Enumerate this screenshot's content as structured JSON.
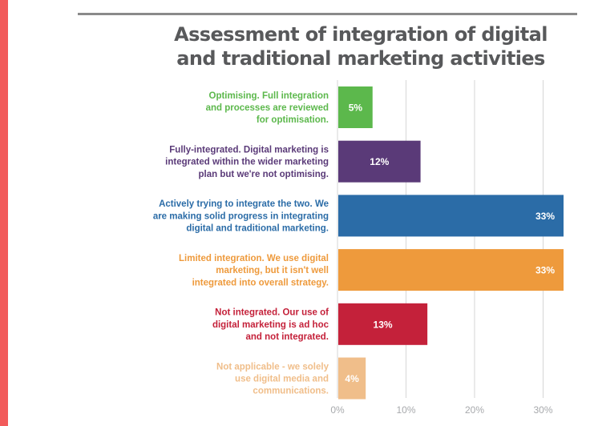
{
  "colors": {
    "accent_strip": "#f25b5b",
    "title": "#58595b",
    "grid": "#d6d6d6",
    "tick_text": "#a7a9ac",
    "bar_text": "#ffffff"
  },
  "chart_data": {
    "type": "bar",
    "orientation": "horizontal",
    "title": "Assessment of integration of digital and traditional marketing activities",
    "title_lines": [
      "Assessment of integration of digital",
      "and traditional marketing activities"
    ],
    "xlabel": "",
    "ylabel": "",
    "xlim": [
      0,
      33
    ],
    "grid": true,
    "x_ticks": [
      {
        "value": 0,
        "label": "0%"
      },
      {
        "value": 10,
        "label": "10%"
      },
      {
        "value": 20,
        "label": "20%"
      },
      {
        "value": 30,
        "label": "30%"
      }
    ],
    "categories": [
      {
        "lines": [
          "Optimising. Full integration",
          "and processes are reviewed",
          "for optimisation."
        ],
        "value": 5,
        "label": "5%",
        "color": "#5cb84c"
      },
      {
        "lines": [
          "Fully-integrated. Digital marketing is",
          "integrated within the wider marketing",
          "plan but we're not optimising."
        ],
        "value": 12,
        "label": "12%",
        "color": "#5a3a78"
      },
      {
        "lines": [
          "Actively trying to integrate the two. We",
          "are making solid progress in integrating",
          "digital and traditional marketing."
        ],
        "value": 33,
        "label": "33%",
        "color": "#2b6ca7"
      },
      {
        "lines": [
          "Limited integration. We use digital",
          "marketing, but it isn't well",
          "integrated into overall strategy."
        ],
        "value": 33,
        "label": "33%",
        "color": "#ee9a3c"
      },
      {
        "lines": [
          "Not integrated. Our use of",
          "digital marketing is ad hoc",
          "and not integrated."
        ],
        "value": 13,
        "label": "13%",
        "color": "#c4213a"
      },
      {
        "lines": [
          "Not applicable - we solely",
          "use digital media and",
          "communications."
        ],
        "value": 4,
        "label": "4%",
        "color": "#f0be8a"
      }
    ]
  }
}
